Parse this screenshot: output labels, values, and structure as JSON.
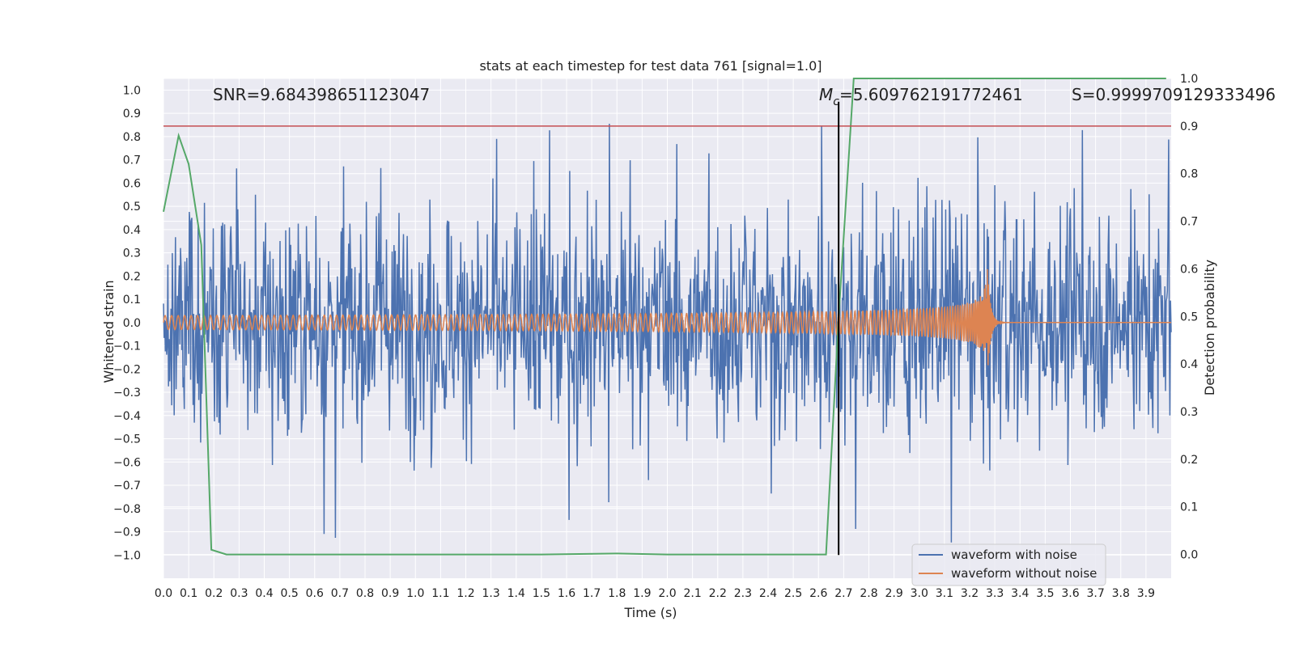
{
  "chart_data": {
    "type": "line",
    "title": "stats at each timestep for test data 761 [signal=1.0]",
    "xlabel": "Time (s)",
    "ylabel": "Whitened strain",
    "y2label": "Detection probability",
    "xlim": [
      0.0,
      4.0
    ],
    "ylim": [
      -1.1,
      1.05
    ],
    "y2lim": [
      -0.05,
      1.0
    ],
    "x_ticks": [
      0.0,
      0.1,
      0.2,
      0.3,
      0.4,
      0.5,
      0.6,
      0.7,
      0.8,
      0.9,
      1.0,
      1.1,
      1.2,
      1.3,
      1.4,
      1.5,
      1.6,
      1.7,
      1.8,
      1.9,
      2.0,
      2.1,
      2.2,
      2.3,
      2.4,
      2.5,
      2.6,
      2.7,
      2.8,
      2.9,
      3.0,
      3.1,
      3.2,
      3.3,
      3.4,
      3.5,
      3.6,
      3.7,
      3.8,
      3.9
    ],
    "x_tick_labels": [
      "0.0",
      "0.1",
      "0.2",
      "0.3",
      "0.4",
      "0.5",
      "0.6",
      "0.7",
      "0.8",
      "0.9",
      "1.0",
      "1.1",
      "1.2",
      "1.3",
      "1.4",
      "1.5",
      "1.6",
      "1.7",
      "1.8",
      "1.9",
      "2.0",
      "2.1",
      "2.2",
      "2.3",
      "2.4",
      "2.5",
      "2.6",
      "2.7",
      "2.8",
      "2.9",
      "3.0",
      "3.1",
      "3.2",
      "3.3",
      "3.4",
      "3.5",
      "3.6",
      "3.7",
      "3.8",
      "3.9"
    ],
    "y_ticks": [
      1.0,
      0.9,
      0.8,
      0.7,
      0.6,
      0.5,
      0.4,
      0.3,
      0.2,
      0.1,
      0.0,
      -0.1,
      -0.2,
      -0.3,
      -0.4,
      -0.5,
      -0.6,
      -0.7,
      -0.8,
      -0.9,
      -1.0
    ],
    "y_tick_labels": [
      "1.0",
      "0.9",
      "0.8",
      "0.7",
      "0.6",
      "0.5",
      "0.4",
      "0.3",
      "0.2",
      "0.1",
      "0.0",
      "−0.1",
      "−0.2",
      "−0.3",
      "−0.4",
      "−0.5",
      "−0.6",
      "−0.7",
      "−0.8",
      "−0.9",
      "−1.0"
    ],
    "y2_ticks": [
      1.0,
      0.9,
      0.8,
      0.7,
      0.6,
      0.5,
      0.4,
      0.3,
      0.2,
      0.1,
      0.0
    ],
    "y2_tick_labels": [
      "1.0",
      "0.9",
      "0.8",
      "0.7",
      "0.6",
      "0.5",
      "0.4",
      "0.3",
      "0.2",
      "0.1",
      "0.0"
    ],
    "series": [
      {
        "name": "waveform with noise",
        "color": "#4c72b0",
        "kind": "noisy strain, approx amplitude 0.3, peaks to about ±1.0"
      },
      {
        "name": "waveform without noise",
        "color": "#dd8452",
        "kind": "chirp: amplitude 0.03 at t=0 rising to 0.30 at merger t=3.27, then ringdown to 0"
      },
      {
        "name": "detection probability",
        "color": "#55a868",
        "axis": "right",
        "x": [
          0.0,
          0.06,
          0.1,
          0.15,
          0.19,
          0.25,
          0.5,
          1.0,
          1.5,
          1.8,
          2.0,
          2.5,
          2.63,
          2.68,
          2.74,
          3.0,
          3.5,
          3.98
        ],
        "y": [
          0.72,
          0.88,
          0.82,
          0.65,
          0.01,
          0.0,
          0.0,
          0.0,
          0.0,
          0.002,
          0.0,
          0.0,
          0.0,
          0.5,
          1.0,
          1.0,
          1.0,
          1.0
        ]
      }
    ],
    "threshold_line": {
      "y2": 0.9,
      "color": "#c44e52"
    },
    "event_line": {
      "x": 2.68,
      "y_from": -1.0,
      "y_to": 0.95,
      "color": "#000000"
    },
    "annotations": {
      "snr": "SNR=9.684398651123047",
      "mc_symbol": "M",
      "mc_subscript": "c",
      "mc_value": "=5.609762191772461",
      "s": "S=0.9999709129333496"
    },
    "legend": {
      "placement": "lower-right",
      "entries": [
        "waveform with noise",
        "waveform without noise"
      ]
    }
  },
  "colors": {
    "background": "#eaeaf2",
    "grid": "#ffffff",
    "noisy": "#4c72b0",
    "clean": "#dd8452",
    "prob": "#55a868",
    "threshold": "#c44e52"
  }
}
